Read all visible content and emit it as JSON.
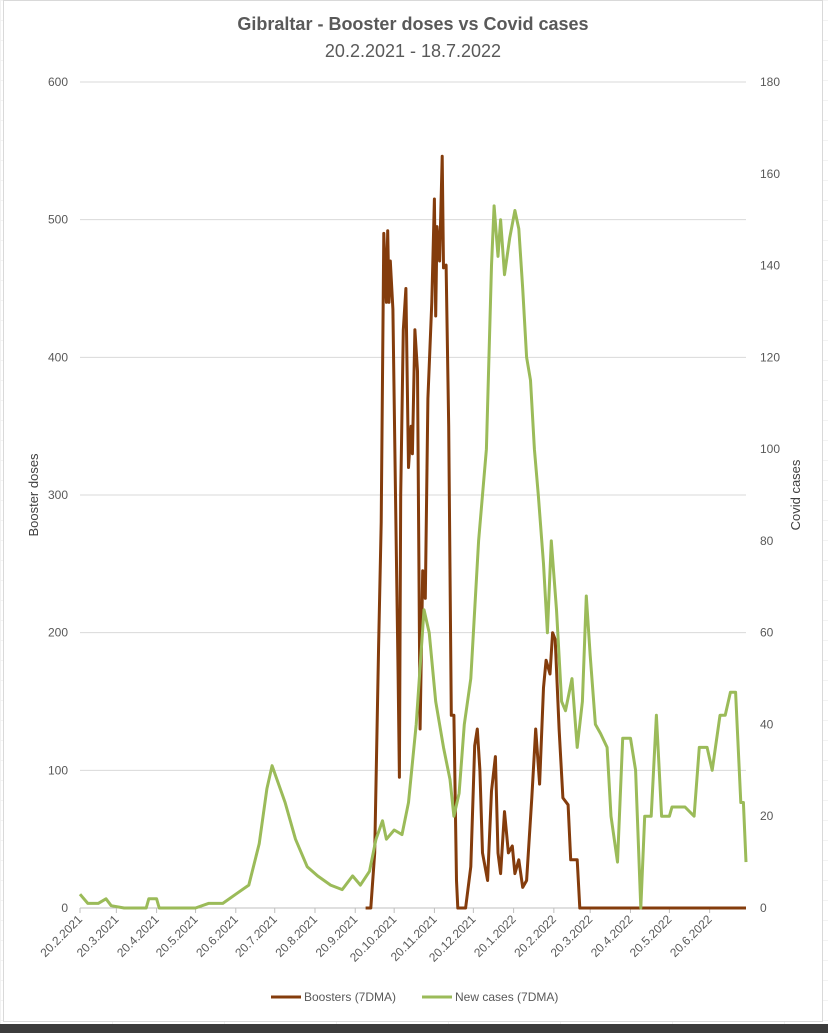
{
  "chart_data": {
    "type": "line",
    "title": "Gibraltar - Booster doses vs Covid cases",
    "subtitle": "20.2.2021 - 18.7.2022",
    "ylabel_left": "Booster doses",
    "ylabel_right": "Covid cases",
    "ylim_left": [
      0,
      600
    ],
    "ylim_right": [
      0,
      180
    ],
    "yticks_left": [
      "0",
      "100",
      "200",
      "300",
      "400",
      "500",
      "600"
    ],
    "yticks_right": [
      "0",
      "20",
      "40",
      "60",
      "80",
      "100",
      "120",
      "140",
      "160",
      "180"
    ],
    "x_range": [
      "2021-02-20",
      "2022-07-18"
    ],
    "x_tick_labels": [
      "20.2.2021",
      "20.3.2021",
      "20.4.2021",
      "20.5.2021",
      "20.6.2021",
      "20.7.2021",
      "20.8.2021",
      "20.9.2021",
      "20.10.2021",
      "20.11.2021",
      "20.12.2021",
      "20.1.2022",
      "20.2.2022",
      "20.3.2022",
      "20.4.2022",
      "20.5.2022",
      "20.6.2022"
    ],
    "x_tick_dates": [
      "2021-02-20",
      "2021-03-20",
      "2021-04-20",
      "2021-05-20",
      "2021-06-20",
      "2021-07-20",
      "2021-08-20",
      "2021-09-20",
      "2021-10-20",
      "2021-11-20",
      "2021-12-20",
      "2022-01-20",
      "2022-02-20",
      "2022-03-20",
      "2022-04-20",
      "2022-05-20",
      "2022-06-20"
    ],
    "grid": true,
    "legend_position": "bottom",
    "series": [
      {
        "name": "Boosters (7DMA)",
        "axis": "left",
        "color": "#843c0c",
        "points": [
          [
            "2021-09-28",
            0
          ],
          [
            "2021-10-02",
            0
          ],
          [
            "2021-10-05",
            40
          ],
          [
            "2021-10-08",
            190
          ],
          [
            "2021-10-10",
            280
          ],
          [
            "2021-10-12",
            490
          ],
          [
            "2021-10-14",
            440
          ],
          [
            "2021-10-15",
            492
          ],
          [
            "2021-10-16",
            440
          ],
          [
            "2021-10-17",
            470
          ],
          [
            "2021-10-19",
            435
          ],
          [
            "2021-10-21",
            300
          ],
          [
            "2021-10-23",
            170
          ],
          [
            "2021-10-24",
            95
          ],
          [
            "2021-10-25",
            300
          ],
          [
            "2021-10-27",
            420
          ],
          [
            "2021-10-29",
            450
          ],
          [
            "2021-10-31",
            320
          ],
          [
            "2021-11-02",
            350
          ],
          [
            "2021-11-03",
            330
          ],
          [
            "2021-11-05",
            420
          ],
          [
            "2021-11-07",
            390
          ],
          [
            "2021-11-09",
            130
          ],
          [
            "2021-11-11",
            245
          ],
          [
            "2021-11-13",
            225
          ],
          [
            "2021-11-15",
            370
          ],
          [
            "2021-11-18",
            440
          ],
          [
            "2021-11-20",
            515
          ],
          [
            "2021-11-21",
            430
          ],
          [
            "2021-11-22",
            495
          ],
          [
            "2021-11-24",
            470
          ],
          [
            "2021-11-26",
            546
          ],
          [
            "2021-11-27",
            465
          ],
          [
            "2021-11-29",
            467
          ],
          [
            "2021-12-01",
            350
          ],
          [
            "2021-12-03",
            140
          ],
          [
            "2021-12-05",
            140
          ],
          [
            "2021-12-07",
            20
          ],
          [
            "2021-12-08",
            0
          ],
          [
            "2021-12-14",
            0
          ],
          [
            "2021-12-18",
            30
          ],
          [
            "2021-12-21",
            118
          ],
          [
            "2021-12-23",
            130
          ],
          [
            "2021-12-25",
            100
          ],
          [
            "2021-12-27",
            40
          ],
          [
            "2021-12-31",
            20
          ],
          [
            "2022-01-03",
            85
          ],
          [
            "2022-01-06",
            110
          ],
          [
            "2022-01-08",
            40
          ],
          [
            "2022-01-10",
            25
          ],
          [
            "2022-01-13",
            70
          ],
          [
            "2022-01-16",
            40
          ],
          [
            "2022-01-19",
            45
          ],
          [
            "2022-01-21",
            25
          ],
          [
            "2022-01-24",
            35
          ],
          [
            "2022-01-27",
            15
          ],
          [
            "2022-01-30",
            20
          ],
          [
            "2022-02-03",
            80
          ],
          [
            "2022-02-06",
            130
          ],
          [
            "2022-02-09",
            90
          ],
          [
            "2022-02-12",
            160
          ],
          [
            "2022-02-14",
            180
          ],
          [
            "2022-02-17",
            170
          ],
          [
            "2022-02-19",
            200
          ],
          [
            "2022-02-21",
            195
          ],
          [
            "2022-02-24",
            130
          ],
          [
            "2022-02-27",
            80
          ],
          [
            "2022-03-03",
            75
          ],
          [
            "2022-03-05",
            35
          ],
          [
            "2022-03-10",
            35
          ],
          [
            "2022-03-12",
            0
          ],
          [
            "2022-07-18",
            0
          ]
        ]
      },
      {
        "name": "New cases (7DMA)",
        "axis": "right",
        "color": "#9bbb59",
        "points": [
          [
            "2021-02-20",
            3
          ],
          [
            "2021-02-26",
            1
          ],
          [
            "2021-03-06",
            1
          ],
          [
            "2021-03-12",
            2
          ],
          [
            "2021-03-16",
            0.5
          ],
          [
            "2021-03-26",
            0
          ],
          [
            "2021-04-12",
            0
          ],
          [
            "2021-04-14",
            2
          ],
          [
            "2021-04-20",
            2
          ],
          [
            "2021-04-22",
            0
          ],
          [
            "2021-05-20",
            0
          ],
          [
            "2021-05-30",
            1
          ],
          [
            "2021-06-10",
            1
          ],
          [
            "2021-06-20",
            3
          ],
          [
            "2021-06-30",
            5
          ],
          [
            "2021-07-08",
            14
          ],
          [
            "2021-07-14",
            26
          ],
          [
            "2021-07-18",
            31
          ],
          [
            "2021-07-23",
            27
          ],
          [
            "2021-07-28",
            23
          ],
          [
            "2021-08-05",
            15
          ],
          [
            "2021-08-14",
            9
          ],
          [
            "2021-08-22",
            7
          ],
          [
            "2021-09-01",
            5
          ],
          [
            "2021-09-10",
            4
          ],
          [
            "2021-09-18",
            7
          ],
          [
            "2021-09-24",
            5
          ],
          [
            "2021-10-01",
            8
          ],
          [
            "2021-10-06",
            15
          ],
          [
            "2021-10-11",
            19
          ],
          [
            "2021-10-14",
            15
          ],
          [
            "2021-10-20",
            17
          ],
          [
            "2021-10-26",
            16
          ],
          [
            "2021-10-31",
            23
          ],
          [
            "2021-11-06",
            40
          ],
          [
            "2021-11-12",
            65
          ],
          [
            "2021-11-16",
            60
          ],
          [
            "2021-11-21",
            45
          ],
          [
            "2021-11-27",
            35
          ],
          [
            "2021-12-02",
            28
          ],
          [
            "2021-12-05",
            20
          ],
          [
            "2021-12-09",
            25
          ],
          [
            "2021-12-13",
            40
          ],
          [
            "2021-12-18",
            50
          ],
          [
            "2021-12-24",
            80
          ],
          [
            "2021-12-30",
            100
          ],
          [
            "2022-01-03",
            140
          ],
          [
            "2022-01-05",
            153
          ],
          [
            "2022-01-08",
            142
          ],
          [
            "2022-01-10",
            150
          ],
          [
            "2022-01-13",
            138
          ],
          [
            "2022-01-17",
            146
          ],
          [
            "2022-01-21",
            152
          ],
          [
            "2022-01-24",
            148
          ],
          [
            "2022-01-27",
            135
          ],
          [
            "2022-01-30",
            120
          ],
          [
            "2022-02-02",
            115
          ],
          [
            "2022-02-05",
            100
          ],
          [
            "2022-02-08",
            90
          ],
          [
            "2022-02-12",
            75
          ],
          [
            "2022-02-15",
            60
          ],
          [
            "2022-02-18",
            80
          ],
          [
            "2022-02-22",
            65
          ],
          [
            "2022-02-26",
            45
          ],
          [
            "2022-03-01",
            43
          ],
          [
            "2022-03-06",
            50
          ],
          [
            "2022-03-10",
            35
          ],
          [
            "2022-03-14",
            45
          ],
          [
            "2022-03-17",
            68
          ],
          [
            "2022-03-20",
            55
          ],
          [
            "2022-03-24",
            40
          ],
          [
            "2022-03-28",
            38
          ],
          [
            "2022-04-02",
            35
          ],
          [
            "2022-04-05",
            20
          ],
          [
            "2022-04-10",
            10
          ],
          [
            "2022-04-14",
            37
          ],
          [
            "2022-04-20",
            37
          ],
          [
            "2022-04-24",
            30
          ],
          [
            "2022-04-28",
            0
          ],
          [
            "2022-05-01",
            20
          ],
          [
            "2022-05-06",
            20
          ],
          [
            "2022-05-10",
            42
          ],
          [
            "2022-05-14",
            20
          ],
          [
            "2022-05-20",
            20
          ],
          [
            "2022-05-22",
            22
          ],
          [
            "2022-06-01",
            22
          ],
          [
            "2022-06-08",
            20
          ],
          [
            "2022-06-12",
            35
          ],
          [
            "2022-06-18",
            35
          ],
          [
            "2022-06-22",
            30
          ],
          [
            "2022-06-28",
            42
          ],
          [
            "2022-07-02",
            42
          ],
          [
            "2022-07-06",
            47
          ],
          [
            "2022-07-10",
            47
          ],
          [
            "2022-07-14",
            23
          ],
          [
            "2022-07-16",
            23
          ],
          [
            "2022-07-18",
            10
          ]
        ]
      }
    ]
  }
}
